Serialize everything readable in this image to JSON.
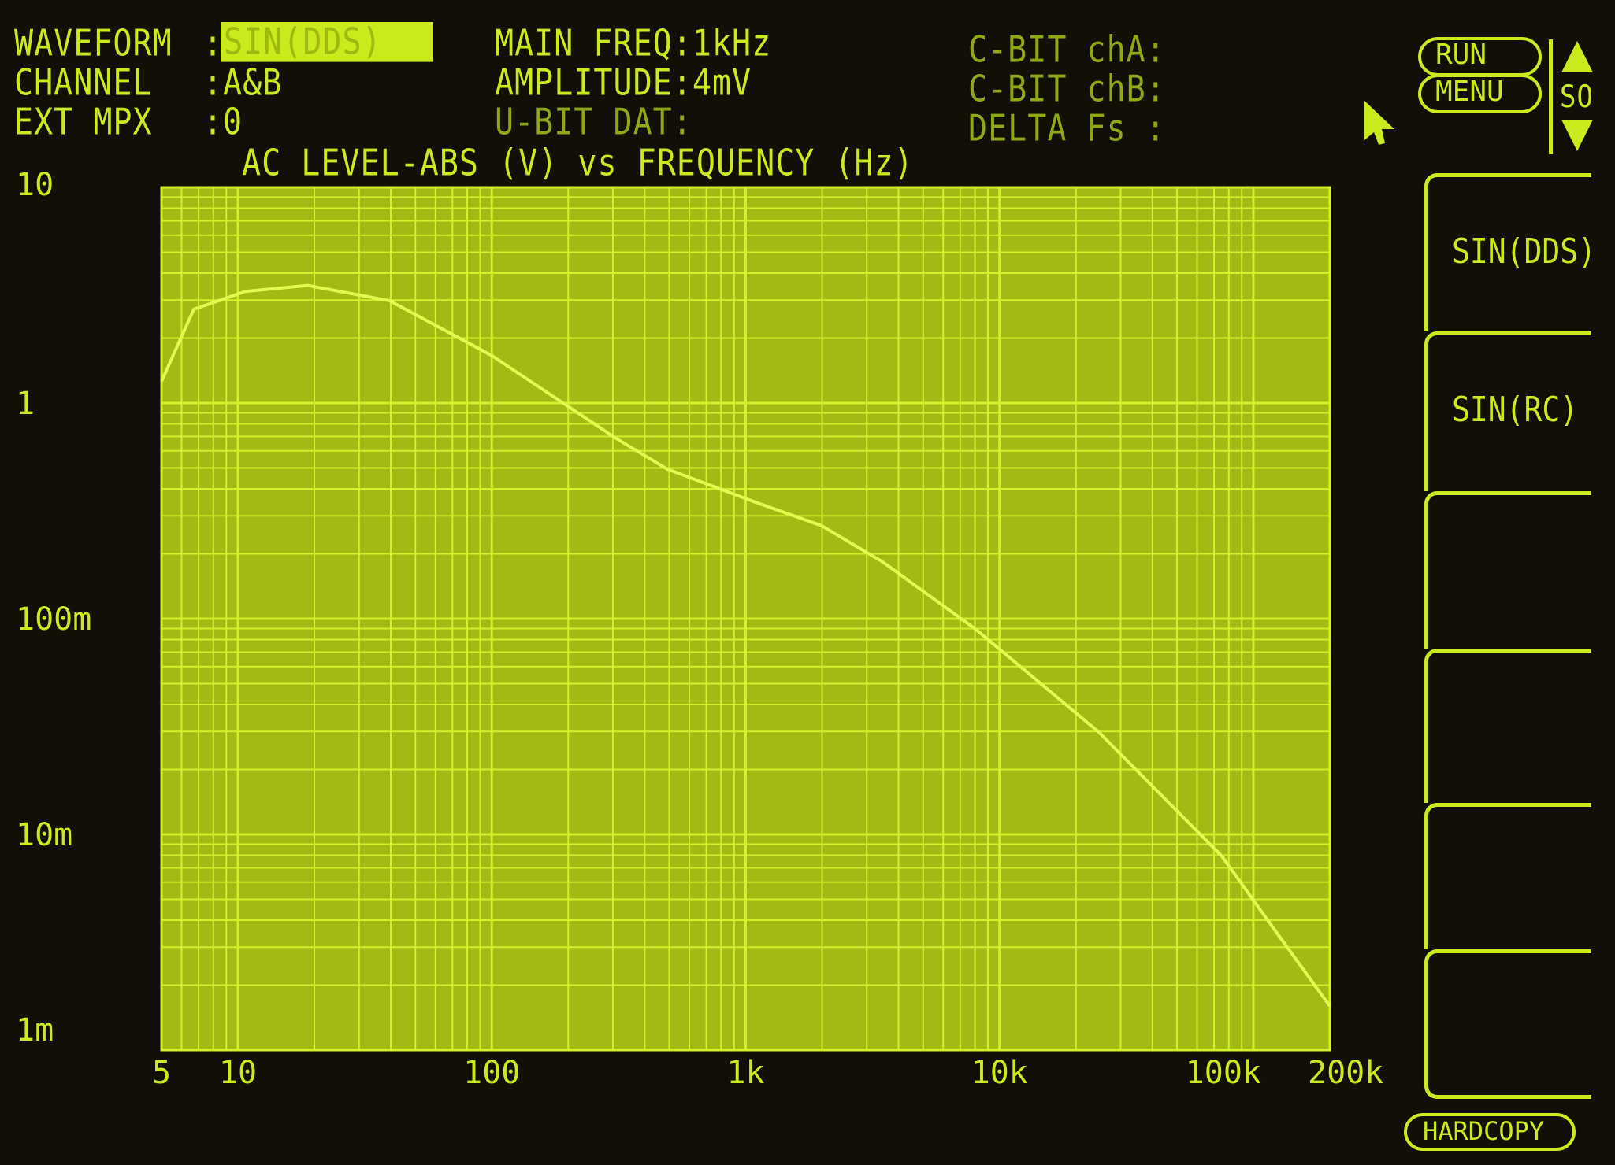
{
  "header": {
    "waveform_label": "WAVEFORM",
    "waveform_value": "SIN(DDS)",
    "channel_label": "CHANNEL",
    "channel_value": "A&B",
    "extmpx_label": "EXT MPX",
    "extmpx_value": "0",
    "main_freq": "MAIN FREQ:1kHz",
    "amplitude": "AMPLITUDE:4mV",
    "ubit": "U-BIT DAT:",
    "cbit_a": "C-BIT chA:",
    "cbit_b": "C-BIT chB:",
    "delta_fs": "DELTA Fs :",
    "colon": ":"
  },
  "controls": {
    "run": "RUN",
    "menu": "MENU",
    "so": "SO",
    "hardcopy": "HARDCOPY"
  },
  "softkeys": [
    {
      "label": "SIN(DDS)"
    },
    {
      "label": "SIN(RC)"
    },
    {
      "label": ""
    },
    {
      "label": ""
    },
    {
      "label": ""
    },
    {
      "label": ""
    }
  ],
  "colors": {
    "phosphor": "#c9ea1c",
    "plot_bg": "#a3b914",
    "grid": "#d2f02c",
    "background": "#120f07"
  },
  "chart_data": {
    "type": "line",
    "title": "AC LEVEL-ABS (V) vs FREQUENCY (Hz)",
    "x_scale": "log",
    "y_scale": "log",
    "xlim": [
      5,
      200000
    ],
    "ylim": [
      0.001,
      10
    ],
    "grid": true,
    "x_ticks": [
      {
        "v": 5,
        "label": "5"
      },
      {
        "v": 10,
        "label": "10"
      },
      {
        "v": 100,
        "label": "100"
      },
      {
        "v": 1000,
        "label": "1k"
      },
      {
        "v": 10000,
        "label": "10k"
      },
      {
        "v": 100000,
        "label": "100k"
      },
      {
        "v": 200000,
        "label": "200k"
      }
    ],
    "y_ticks": [
      {
        "v": 10,
        "label": "10"
      },
      {
        "v": 1,
        "label": "1"
      },
      {
        "v": 0.1,
        "label": "100m"
      },
      {
        "v": 0.01,
        "label": "10m"
      },
      {
        "v": 0.001,
        "label": "1m"
      }
    ],
    "x": [
      5,
      6.7,
      10.7,
      18.8,
      39.6,
      100,
      308,
      491,
      1035,
      1990,
      3475,
      8040,
      24600,
      75300,
      120000,
      200000
    ],
    "y": [
      1.26,
      2.72,
      3.29,
      3.51,
      2.98,
      1.66,
      0.687,
      0.494,
      0.355,
      0.27,
      0.183,
      0.0895,
      0.0298,
      0.0079,
      0.00367,
      0.0016
    ]
  }
}
